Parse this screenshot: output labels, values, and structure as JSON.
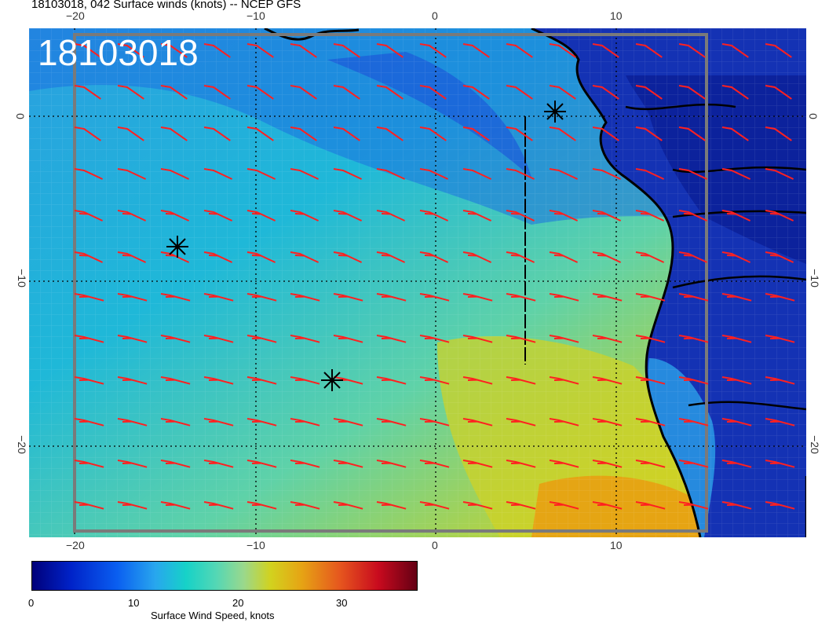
{
  "header": {
    "title": "18103018, 042 Surface winds (knots) -- NCEP GFS"
  },
  "map": {
    "timestamp": "18103018",
    "top_lon_labels": [
      "−20",
      "−10",
      "0",
      "10"
    ],
    "bottom_lon_labels": [
      "−20",
      "−10",
      "0",
      "10"
    ],
    "left_lat_labels": [
      "0",
      "−10",
      "−20"
    ],
    "right_lat_labels": [
      "0",
      "−10",
      "−20"
    ],
    "barb_color": "#ff2020",
    "coastline_color": "#000000"
  },
  "colorbar": {
    "ticks": [
      "0",
      "10",
      "20",
      "30"
    ],
    "label": "Surface Wind Speed, knots",
    "colors": [
      "#00007a",
      "#0022c8",
      "#0a5ef0",
      "#28a6ee",
      "#16d2c8",
      "#9ad88c",
      "#d2d21e",
      "#e6a414",
      "#e6561e",
      "#c80a1e",
      "#640014"
    ]
  }
}
